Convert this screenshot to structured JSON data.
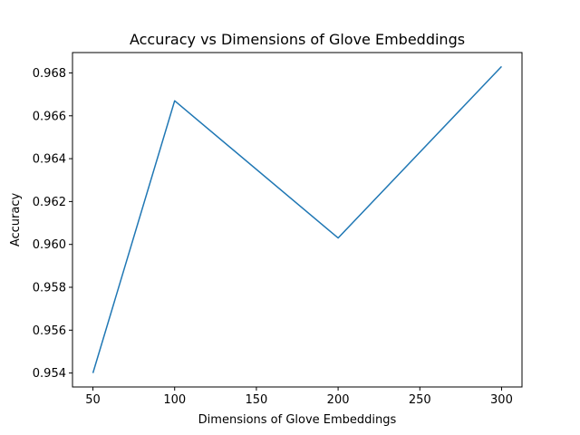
{
  "chart_data": {
    "type": "line",
    "title": "Accuracy vs Dimensions of Glove Embeddings",
    "xlabel": "Dimensions of Glove Embeddings",
    "ylabel": "Accuracy",
    "x": [
      50,
      100,
      200,
      300
    ],
    "series": [
      {
        "values": [
          0.954,
          0.9667,
          0.9603,
          0.9683
        ],
        "color": "#1f77b4"
      }
    ],
    "xlim": [
      37.5,
      312.5
    ],
    "ylim": [
      0.95335,
      0.96895
    ],
    "xticks": [
      50,
      100,
      150,
      200,
      250,
      300
    ],
    "xtick_labels": [
      "50",
      "100",
      "150",
      "200",
      "250",
      "300"
    ],
    "yticks": [
      0.954,
      0.956,
      0.958,
      0.96,
      0.962,
      0.964,
      0.966,
      0.968
    ],
    "ytick_labels": [
      "0.954",
      "0.956",
      "0.958",
      "0.960",
      "0.962",
      "0.964",
      "0.966",
      "0.968"
    ],
    "grid": false,
    "legend": "none"
  }
}
